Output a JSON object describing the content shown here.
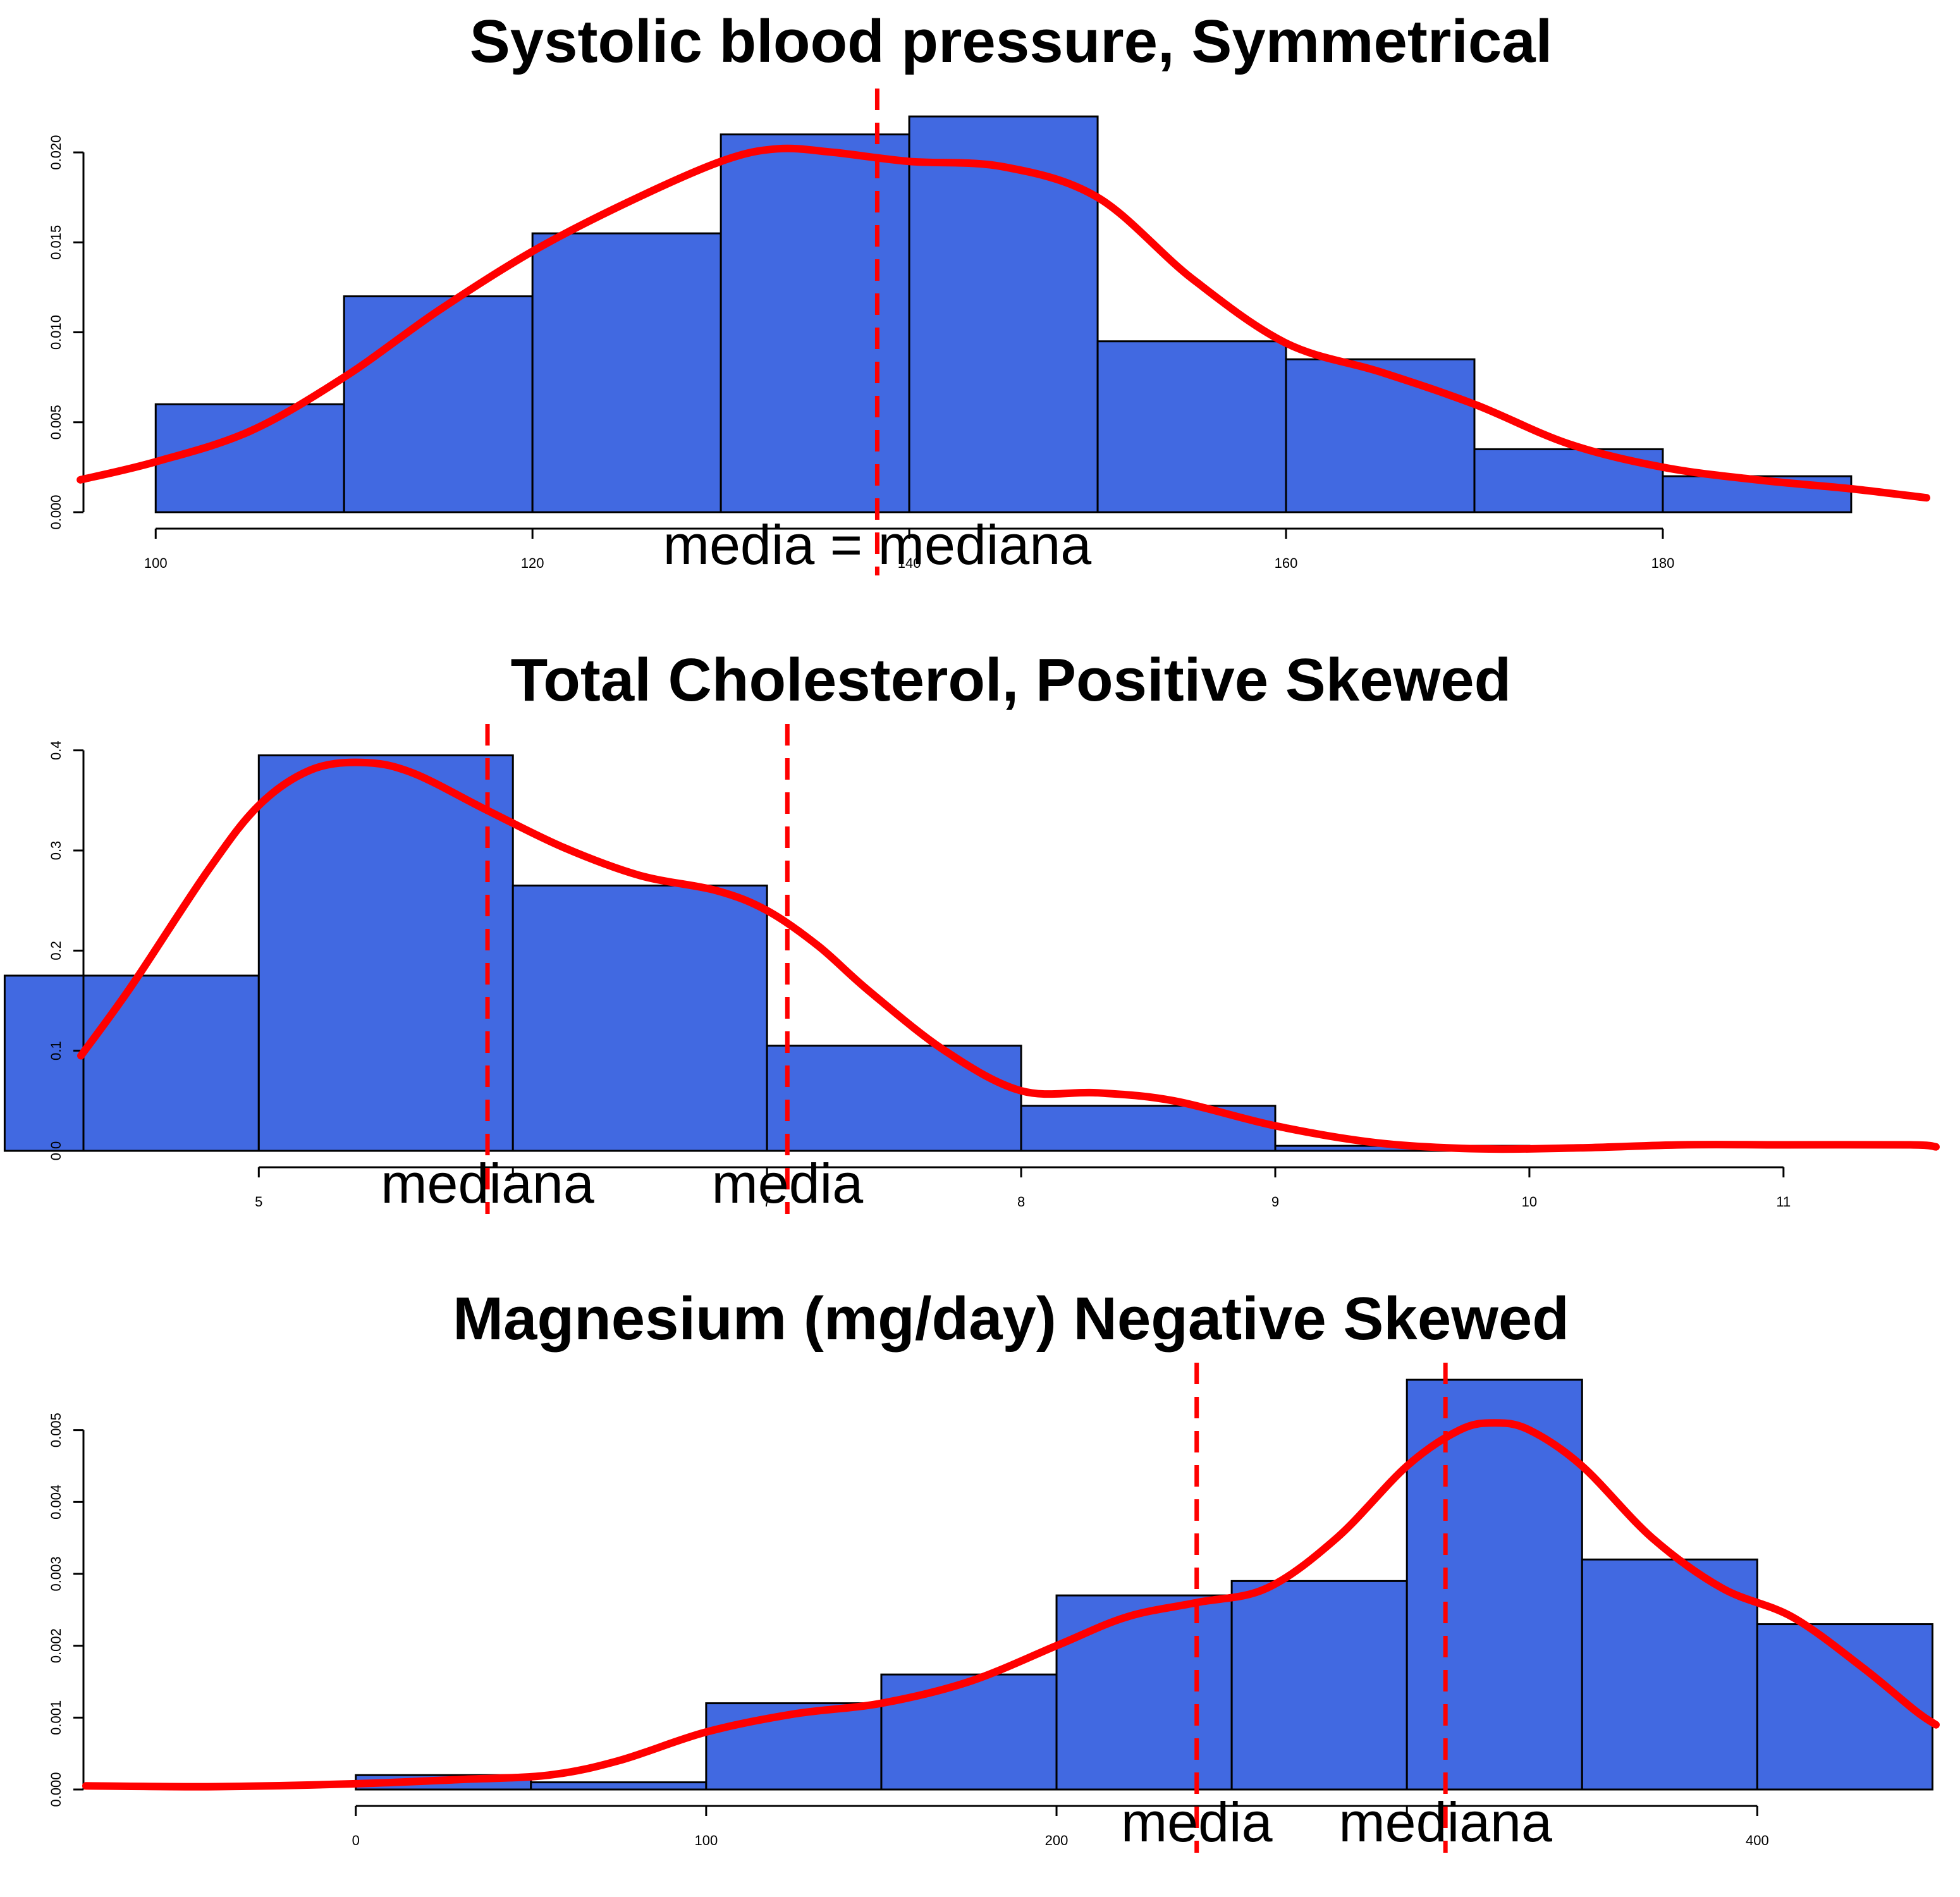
{
  "colors": {
    "bar_fill": "#4169E1",
    "bar_stroke": "#000000",
    "density": "#FF0000",
    "refline": "#FF0000"
  },
  "chart_data": [
    {
      "type": "bar",
      "title": "Systolic blood pressure, Symmetrical",
      "xlabel": "",
      "ylabel": "",
      "bins": [
        {
          "from": 100,
          "to": 110,
          "density": 0.006
        },
        {
          "from": 110,
          "to": 120,
          "density": 0.012
        },
        {
          "from": 120,
          "to": 130,
          "density": 0.0155
        },
        {
          "from": 130,
          "to": 140,
          "density": 0.021
        },
        {
          "from": 140,
          "to": 150,
          "density": 0.022
        },
        {
          "from": 150,
          "to": 160,
          "density": 0.0095
        },
        {
          "from": 160,
          "to": 170,
          "density": 0.0085
        },
        {
          "from": 170,
          "to": 180,
          "density": 0.0035
        },
        {
          "from": 180,
          "to": 190,
          "density": 0.002
        }
      ],
      "density_curve": {
        "x": [
          96,
          100,
          105,
          110,
          115,
          120,
          125,
          130,
          133,
          136,
          140,
          145,
          150,
          155,
          160,
          165,
          170,
          175,
          180,
          185,
          190,
          194
        ],
        "y": [
          0.0018,
          0.0028,
          0.0045,
          0.0075,
          0.0112,
          0.0145,
          0.0172,
          0.0195,
          0.0202,
          0.02,
          0.0195,
          0.0192,
          0.0175,
          0.013,
          0.0094,
          0.0078,
          0.006,
          0.0038,
          0.0025,
          0.0018,
          0.0013,
          0.0008
        ]
      },
      "x_ticks": [
        100,
        120,
        140,
        160,
        180
      ],
      "x_tick_labels": [
        "100",
        "120",
        "140",
        "160",
        "180"
      ],
      "y_ticks": [
        0,
        0.005,
        0.01,
        0.015,
        0.02
      ],
      "y_tick_labels": [
        "0.000",
        "0.005",
        "0.010",
        "0.015",
        "0.020"
      ],
      "xlim": [
        96.3,
        194.5
      ],
      "ylim": [
        0,
        0.0232
      ],
      "reference_lines": [
        {
          "x": 138.3
        }
      ],
      "annotations": [
        {
          "text": "media = mediana",
          "x": 138.3
        }
      ]
    },
    {
      "type": "bar",
      "title": "Total Cholesterol, Positive Skewed",
      "xlabel": "",
      "ylabel": "",
      "bins": [
        {
          "from": 4,
          "to": 5,
          "density": 0.175
        },
        {
          "from": 5,
          "to": 6,
          "density": 0.395
        },
        {
          "from": 6,
          "to": 7,
          "density": 0.265
        },
        {
          "from": 7,
          "to": 8,
          "density": 0.105
        },
        {
          "from": 8,
          "to": 9,
          "density": 0.045
        },
        {
          "from": 9,
          "to": 10,
          "density": 0.005
        }
      ],
      "density_curve": {
        "x": [
          4.3,
          4.5,
          4.8,
          5.0,
          5.2,
          5.4,
          5.6,
          5.9,
          6.2,
          6.5,
          6.8,
          7.0,
          7.2,
          7.4,
          7.7,
          8.0,
          8.3,
          8.6,
          9.0,
          9.4,
          9.8,
          10.2,
          10.6,
          11.0,
          11.5,
          11.6
        ],
        "y": [
          0.095,
          0.165,
          0.28,
          0.345,
          0.38,
          0.388,
          0.378,
          0.34,
          0.303,
          0.275,
          0.26,
          0.24,
          0.205,
          0.16,
          0.1,
          0.06,
          0.058,
          0.05,
          0.025,
          0.008,
          0.002,
          0.003,
          0.006,
          0.006,
          0.006,
          0.004
        ]
      },
      "x_ticks": [
        5,
        6,
        7,
        8,
        9,
        10,
        11
      ],
      "x_tick_labels": [
        "5",
        "",
        "7",
        "8",
        "9",
        "10",
        "11"
      ],
      "y_ticks": [
        0,
        0.1,
        0.2,
        0.3,
        0.4
      ],
      "y_tick_labels": [
        "0.0",
        "0.1",
        "0.2",
        "0.3",
        "0.4"
      ],
      "xlim": [
        4.32,
        11.6
      ],
      "ylim": [
        0,
        0.42
      ],
      "reference_lines": [
        {
          "x": 5.9
        },
        {
          "x": 7.08
        }
      ],
      "annotations": [
        {
          "text": "mediana",
          "x": 5.9
        },
        {
          "text": "media",
          "x": 7.08
        }
      ]
    },
    {
      "type": "bar",
      "title": "Magnesium (mg/day) Negative Skewed",
      "xlabel": "",
      "ylabel": "",
      "bins": [
        {
          "from": 0,
          "to": 50,
          "density": 0.0002
        },
        {
          "from": 50,
          "to": 100,
          "density": 0.0001
        },
        {
          "from": 100,
          "to": 150,
          "density": 0.0012
        },
        {
          "from": 150,
          "to": 200,
          "density": 0.0016
        },
        {
          "from": 200,
          "to": 250,
          "density": 0.0027
        },
        {
          "from": 250,
          "to": 300,
          "density": 0.0029
        },
        {
          "from": 300,
          "to": 350,
          "density": 0.0057
        },
        {
          "from": 350,
          "to": 400,
          "density": 0.0032
        },
        {
          "from": 400,
          "to": 450,
          "density": 0.0023
        }
      ],
      "density_curve": {
        "x": [
          -77,
          -40,
          0,
          30,
          55,
          75,
          100,
          125,
          150,
          175,
          200,
          220,
          240,
          260,
          280,
          300,
          315,
          325,
          335,
          350,
          370,
          390,
          410,
          430,
          445,
          451
        ],
        "y": [
          5e-05,
          4e-05,
          8e-05,
          0.00014,
          0.0002,
          0.0004,
          0.0008,
          0.00105,
          0.0012,
          0.0015,
          0.002,
          0.0024,
          0.0026,
          0.0028,
          0.0035,
          0.0045,
          0.005,
          0.0051,
          0.005,
          0.0045,
          0.0035,
          0.0028,
          0.0024,
          0.0017,
          0.0011,
          0.0009
        ]
      },
      "x_ticks": [
        0,
        100,
        200,
        300,
        400
      ],
      "x_tick_labels": [
        "0",
        "100",
        "200",
        "",
        "400"
      ],
      "y_ticks": [
        0,
        0.001,
        0.002,
        0.003,
        0.004,
        0.005
      ],
      "y_tick_labels": [
        "0.000",
        "0.001",
        "0.002",
        "0.003",
        "0.004",
        "0.005"
      ],
      "xlim": [
        -77,
        451
      ],
      "ylim": [
        0,
        0.00585
      ],
      "reference_lines": [
        {
          "x": 240
        },
        {
          "x": 311
        }
      ],
      "annotations": [
        {
          "text": "media",
          "x": 240
        },
        {
          "text": "mediana",
          "x": 311
        }
      ]
    }
  ]
}
